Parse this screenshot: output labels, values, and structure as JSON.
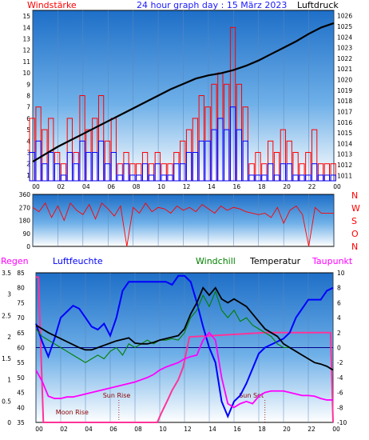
{
  "header": {
    "left": "Windstärke",
    "center": "24 hour graph day : 15 März 2023",
    "right": "Luftdruck"
  },
  "labels": {
    "regen": "Regen",
    "luftfeuchte": "Luftfeuchte",
    "windchill": "Windchill",
    "temperatur": "Temperatur",
    "taupunkt": "Taupunkt",
    "sun_rise": "Sun Rise",
    "moon_rise": "Moon Rise",
    "sun_set": "Sun Set"
  },
  "x_ticks": [
    "00",
    "02",
    "04",
    "06",
    "08",
    "10",
    "12",
    "14",
    "16",
    "18",
    "20",
    "22",
    "00"
  ],
  "colors": {
    "wind_max": "#ff0000",
    "wind_avg": "#0000ff",
    "pressure": "#000000",
    "direction": "#ff0000",
    "humidity": "#0000ff",
    "temperature": "#000000",
    "windchill": "#008000",
    "dewpoint": "#ff00ff",
    "rain": "#ff3399",
    "header": "#1a1aff",
    "label_red": "#ff0000"
  },
  "chart_data": [
    {
      "type": "line",
      "name": "wind-pressure",
      "x_unit": "hour",
      "x_range": [
        0,
        24
      ],
      "y_left": {
        "label": "Windstärke",
        "ticks": [
          1,
          2,
          3,
          4,
          5,
          6,
          7,
          8,
          9,
          10,
          11,
          12,
          13,
          14,
          15
        ]
      },
      "y_right": {
        "label": "Luftdruck",
        "ticks": [
          1011,
          1012,
          1013,
          1014,
          1015,
          1016,
          1017,
          1018,
          1019,
          1020,
          1021,
          1022,
          1023,
          1024,
          1025,
          1026
        ]
      },
      "pressure": {
        "x": [
          0,
          1,
          2,
          3,
          4,
          5,
          6,
          7,
          8,
          9,
          10,
          11,
          12,
          13,
          14,
          15,
          16,
          17,
          18,
          19,
          20,
          21,
          22,
          23,
          24
        ],
        "y": [
          1012.3,
          1013.0,
          1013.7,
          1014.3,
          1014.9,
          1015.5,
          1016.1,
          1016.7,
          1017.3,
          1017.9,
          1018.5,
          1019.1,
          1019.6,
          1020.1,
          1020.4,
          1020.6,
          1020.9,
          1021.3,
          1021.8,
          1022.4,
          1023.0,
          1023.6,
          1024.3,
          1024.9,
          1025.3
        ]
      },
      "wind_max": {
        "x": [
          0,
          0.5,
          1,
          1.5,
          2,
          2.5,
          3,
          3.5,
          4,
          4.5,
          5,
          5.5,
          6,
          6.5,
          7,
          7.5,
          8,
          8.5,
          9,
          9.5,
          10,
          10.5,
          11,
          11.5,
          12,
          12.5,
          13,
          13.5,
          14,
          14.5,
          15,
          15.5,
          16,
          16.5,
          17,
          17.5,
          18,
          18.5,
          19,
          19.5,
          20,
          20.5,
          21,
          21.5,
          22,
          22.5,
          23,
          23.5,
          24
        ],
        "y": [
          6,
          7,
          5,
          6,
          3,
          2,
          6,
          3,
          8,
          5,
          6,
          8,
          4,
          6,
          2,
          3,
          2,
          2,
          3,
          2,
          3,
          2,
          2,
          3,
          4,
          5,
          6,
          8,
          7,
          9,
          10,
          9,
          14,
          9,
          7,
          2,
          3,
          2,
          4,
          3,
          5,
          4,
          3,
          2,
          3,
          5,
          2,
          2,
          2
        ]
      },
      "wind_avg": {
        "x": [
          0,
          0.5,
          1,
          1.5,
          2,
          2.5,
          3,
          3.5,
          4,
          4.5,
          5,
          5.5,
          6,
          6.5,
          7,
          7.5,
          8,
          8.5,
          9,
          9.5,
          10,
          10.5,
          11,
          11.5,
          12,
          12.5,
          13,
          13.5,
          14,
          14.5,
          15,
          15.5,
          16,
          16.5,
          17,
          17.5,
          18,
          18.5,
          19,
          19.5,
          20,
          20.5,
          21,
          21.5,
          22,
          22.5,
          23,
          23.5,
          24
        ],
        "y": [
          3,
          4,
          2,
          3,
          2,
          1,
          3,
          2,
          4,
          3,
          3,
          4,
          2,
          3,
          1,
          2,
          1,
          1,
          2,
          1,
          2,
          1,
          1,
          2,
          2,
          3,
          3,
          4,
          4,
          5,
          6,
          5,
          7,
          5,
          4,
          1,
          1,
          1,
          2,
          1,
          2,
          2,
          1,
          1,
          1,
          2,
          1,
          1,
          1
        ]
      }
    },
    {
      "type": "scatter",
      "name": "wind-direction",
      "x_unit": "hour",
      "x_range": [
        0,
        24
      ],
      "y_left": {
        "ticks": [
          0,
          90,
          180,
          270,
          360
        ]
      },
      "y_right": {
        "labels": [
          "N",
          "W",
          "S",
          "O",
          "N"
        ]
      },
      "series": {
        "x": [
          0,
          0.5,
          1,
          1.5,
          2,
          2.5,
          3,
          3.5,
          4,
          4.5,
          5,
          5.5,
          6,
          6.5,
          7,
          7.5,
          8,
          8.5,
          9,
          9.5,
          10,
          10.5,
          11,
          11.5,
          12,
          12.5,
          13,
          13.5,
          14,
          14.5,
          15,
          15.5,
          16,
          16.5,
          17,
          17.5,
          18,
          18.5,
          19,
          19.5,
          20,
          20.5,
          21,
          21.5,
          22,
          22.5,
          23,
          23.5,
          24
        ],
        "y": [
          270,
          240,
          300,
          200,
          280,
          180,
          300,
          250,
          220,
          290,
          190,
          300,
          260,
          210,
          280,
          0,
          270,
          230,
          300,
          240,
          270,
          260,
          230,
          280,
          250,
          270,
          240,
          290,
          260,
          230,
          280,
          250,
          270,
          260,
          240,
          230,
          220,
          230,
          200,
          270,
          160,
          250,
          280,
          220,
          0,
          270,
          230,
          230,
          230
        ]
      }
    },
    {
      "type": "line",
      "name": "climate",
      "x_unit": "hour",
      "x_range": [
        0,
        24
      ],
      "regen_ticks": [
        "0",
        "0.5",
        "1",
        "1.5",
        "2",
        "2.5",
        "3",
        "3.5"
      ],
      "luftfeuchte_ticks": [
        35,
        40,
        45,
        50,
        55,
        60,
        65,
        70,
        75,
        80,
        85
      ],
      "temp_ticks": [
        -10,
        -8,
        -6,
        -4,
        -2,
        0,
        2,
        4,
        6,
        8,
        10
      ],
      "humidity": {
        "x": [
          0,
          0.5,
          1,
          1.5,
          2,
          2.5,
          3,
          3.5,
          4,
          4.5,
          5,
          5.5,
          6,
          6.5,
          7,
          7.5,
          8,
          8.5,
          9,
          9.5,
          10,
          10.5,
          11,
          11.5,
          12,
          12.5,
          13,
          13.5,
          14,
          14.5,
          15,
          15.5,
          16,
          16.5,
          17,
          17.5,
          18,
          18.5,
          19,
          19.5,
          20,
          20.5,
          21,
          21.5,
          22,
          22.5,
          23,
          23.5,
          24
        ],
        "y": [
          68,
          62,
          57,
          63,
          70,
          72,
          74,
          73,
          70,
          67,
          66,
          68,
          64,
          70,
          79,
          82,
          82,
          82,
          82,
          82,
          82,
          82,
          81,
          84,
          84,
          82,
          75,
          67,
          60,
          55,
          42,
          37,
          42,
          44,
          48,
          53,
          58,
          60,
          61,
          62,
          63,
          65,
          70,
          73,
          76,
          76,
          76,
          79,
          80
        ]
      },
      "temperature": {
        "x": [
          0,
          0.5,
          1,
          1.5,
          2,
          2.5,
          3,
          3.5,
          4,
          4.5,
          5,
          5.5,
          6,
          6.5,
          7,
          7.5,
          8,
          8.5,
          9,
          9.5,
          10,
          10.5,
          11,
          11.5,
          12,
          12.5,
          13,
          13.5,
          14,
          14.5,
          15,
          15.5,
          16,
          16.5,
          17,
          17.5,
          18,
          18.5,
          19,
          19.5,
          20,
          20.5,
          21,
          21.5,
          22,
          22.5,
          23,
          23.5,
          24
        ],
        "y": [
          3,
          2.5,
          2,
          1.6,
          1.2,
          0.8,
          0.4,
          0,
          -0.3,
          -0.3,
          0,
          0.3,
          0.6,
          0.9,
          1.1,
          1.3,
          0.6,
          0.5,
          0.5,
          0.7,
          1,
          1.2,
          1.4,
          1.6,
          2.5,
          4.5,
          6,
          8,
          7,
          8,
          6.5,
          6,
          6.5,
          6,
          5.5,
          4.5,
          3.5,
          2.5,
          2,
          1.5,
          0.5,
          0,
          -0.5,
          -1,
          -1.5,
          -2,
          -2.2,
          -2.5,
          -3
        ]
      },
      "windchill": {
        "x": [
          0,
          0.5,
          1,
          1.5,
          2,
          2.5,
          3,
          3.5,
          4,
          4.5,
          5,
          5.5,
          6,
          6.5,
          7,
          7.5,
          8,
          8.5,
          9,
          9.5,
          10,
          10.5,
          11,
          11.5,
          12,
          12.5,
          13,
          13.5,
          14,
          14.5,
          15,
          15.5,
          16,
          16.5,
          17,
          17.5,
          18,
          18.5,
          19,
          19.5,
          20,
          20.5,
          21,
          21.5,
          22,
          22.5,
          23,
          23.5,
          24
        ],
        "y": [
          2.5,
          1.5,
          1,
          0.5,
          0,
          -0.5,
          -1,
          -1.5,
          -2,
          -1.5,
          -1,
          -1.5,
          -0.5,
          0,
          -1,
          0.5,
          0,
          0.5,
          1,
          0.5,
          1,
          1,
          1.2,
          1,
          2,
          4,
          5,
          7,
          5.5,
          7.5,
          5,
          4,
          5,
          3.5,
          4,
          3,
          2.5,
          2,
          1.5,
          0.5,
          0,
          0,
          -0.5,
          -1,
          -1.5,
          -2,
          -2.2,
          -2.5,
          -3
        ]
      },
      "dewpoint": {
        "x": [
          0,
          0.5,
          1,
          1.5,
          2,
          2.5,
          3,
          3.5,
          4,
          4.5,
          5,
          5.5,
          6,
          6.5,
          7,
          7.5,
          8,
          8.5,
          9,
          9.5,
          10,
          10.5,
          11,
          11.5,
          12,
          12.5,
          13,
          13.5,
          14,
          14.5,
          15,
          15.5,
          16,
          16.5,
          17,
          17.5,
          18,
          18.5,
          19,
          19.5,
          20,
          20.5,
          21,
          21.5,
          22,
          22.5,
          23,
          23.5,
          24
        ],
        "y": [
          -3,
          -4.5,
          -6.5,
          -6.8,
          -6.8,
          -6.6,
          -6.6,
          -6.4,
          -6.2,
          -6,
          -5.8,
          -5.6,
          -5.4,
          -5.2,
          -5,
          -4.8,
          -4.6,
          -4.3,
          -4,
          -3.6,
          -3,
          -2.6,
          -2.3,
          -2,
          -1.5,
          -1.2,
          -1,
          1,
          2,
          1,
          -4,
          -7.5,
          -8,
          -7.5,
          -7.2,
          -7.5,
          -6.5,
          -6,
          -5.8,
          -5.8,
          -5.8,
          -6,
          -6.2,
          -6.4,
          -6.4,
          -6.5,
          -6.8,
          -7,
          -7
        ]
      },
      "rain": {
        "x": [
          0,
          0.2,
          0.6,
          9.8,
          10.1,
          10.6,
          11,
          11.5,
          11.9,
          12.4,
          18.5,
          23.8,
          24
        ],
        "y": [
          3.4,
          3.4,
          0,
          0,
          0.2,
          0.5,
          0.75,
          1,
          1.3,
          2,
          2.1,
          2.1,
          0
        ]
      },
      "events": [
        {
          "label": "Sun Rise",
          "hour": 6.7
        },
        {
          "label": "Moon Rise",
          "hour": 0.6
        },
        {
          "label": "Sun Set",
          "hour": 18.5
        }
      ]
    }
  ]
}
